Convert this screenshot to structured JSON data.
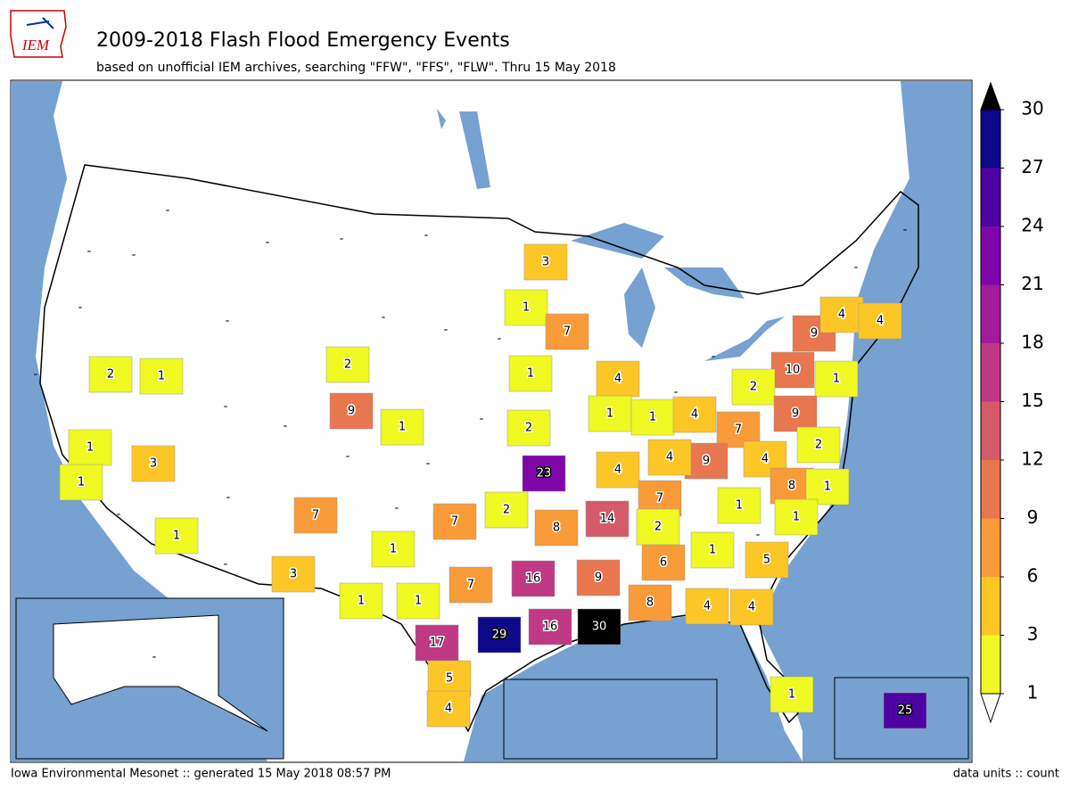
{
  "header": {
    "title": "2009-2018 Flash Flood Emergency Events",
    "subtitle": "based on unofficial IEM archives, searching \"FFW\", \"FFS\", \"FLW\". Thru 15 May 2018",
    "logo": "IEM"
  },
  "map": {
    "regions": [
      3,
      1,
      7,
      1,
      4,
      1,
      1,
      4,
      7,
      9,
      4,
      4,
      4,
      2,
      23,
      7,
      8,
      1,
      1,
      1,
      14,
      2,
      8,
      7,
      2,
      7,
      3,
      1,
      1,
      1,
      7,
      16,
      9,
      6,
      1,
      5,
      8,
      4,
      4,
      30,
      16,
      29,
      17,
      5,
      4,
      1,
      25,
      2,
      1,
      1,
      3,
      1,
      1,
      2,
      9,
      1,
      9,
      4,
      4,
      10,
      2,
      1,
      9,
      2
    ],
    "missing_label": "-"
  },
  "colorbar": {
    "ticks": [
      1,
      3,
      6,
      9,
      12,
      15,
      18,
      21,
      24,
      27,
      30
    ],
    "colors": [
      "#f0f921",
      "#fdc627",
      "#f99b38",
      "#e8764f",
      "#d55a6a",
      "#bf3986",
      "#a11b9b",
      "#7e05a8",
      "#4e02a2",
      "#0d0887"
    ],
    "over_color": "#000000",
    "under_color": "#ffffff"
  },
  "footer": {
    "left": "Iowa Environmental Mesonet :: generated 15 May 2018 08:57 PM",
    "right": "data units :: count"
  }
}
